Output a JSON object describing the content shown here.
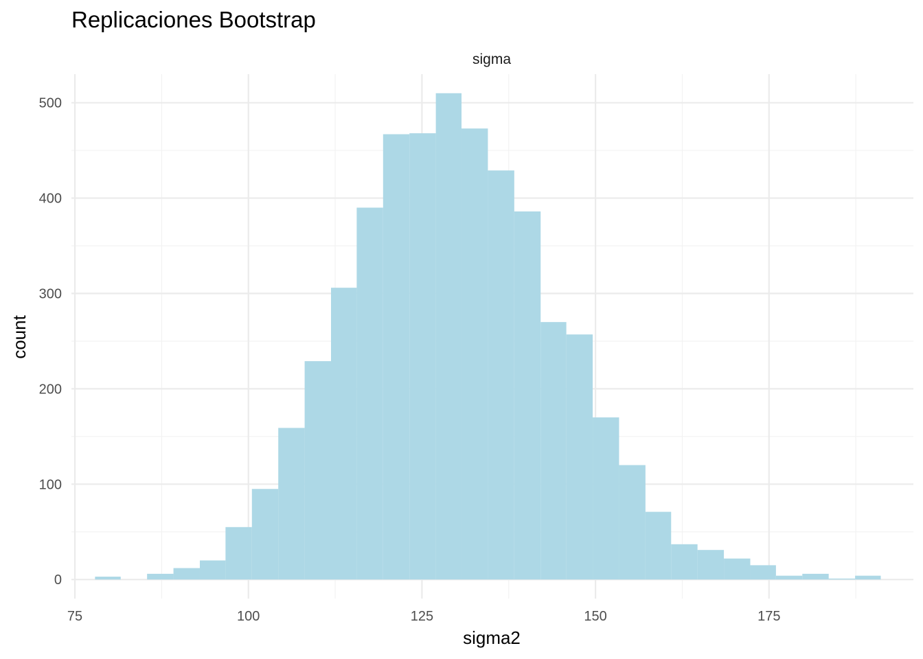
{
  "chart_data": {
    "type": "bar",
    "title": "Replicaciones Bootstrap",
    "facet_label": "sigma",
    "xlabel": "sigma2",
    "ylabel": "count",
    "bar_color": "#ADD8E6",
    "xlim": [
      74.5,
      195.8
    ],
    "ylim": [
      -20,
      530
    ],
    "x_ticks": [
      75,
      100,
      125,
      150,
      175
    ],
    "y_ticks": [
      0,
      100,
      200,
      300,
      400,
      500
    ],
    "grid": true,
    "bins": [
      {
        "x0": 77.9,
        "x1": 81.6,
        "count": 3
      },
      {
        "x0": 81.6,
        "x1": 85.4,
        "count": 0
      },
      {
        "x0": 85.4,
        "x1": 89.2,
        "count": 6
      },
      {
        "x0": 89.2,
        "x1": 93.0,
        "count": 12
      },
      {
        "x0": 93.0,
        "x1": 96.7,
        "count": 20
      },
      {
        "x0": 96.7,
        "x1": 100.5,
        "count": 55
      },
      {
        "x0": 100.5,
        "x1": 104.3,
        "count": 95
      },
      {
        "x0": 104.3,
        "x1": 108.1,
        "count": 159
      },
      {
        "x0": 108.1,
        "x1": 111.9,
        "count": 229
      },
      {
        "x0": 111.9,
        "x1": 115.6,
        "count": 306
      },
      {
        "x0": 115.6,
        "x1": 119.4,
        "count": 390
      },
      {
        "x0": 119.4,
        "x1": 123.2,
        "count": 467
      },
      {
        "x0": 123.2,
        "x1": 127.0,
        "count": 468
      },
      {
        "x0": 127.0,
        "x1": 130.7,
        "count": 510
      },
      {
        "x0": 130.7,
        "x1": 134.5,
        "count": 473
      },
      {
        "x0": 134.5,
        "x1": 138.3,
        "count": 429
      },
      {
        "x0": 138.3,
        "x1": 142.1,
        "count": 386
      },
      {
        "x0": 142.1,
        "x1": 145.8,
        "count": 270
      },
      {
        "x0": 145.8,
        "x1": 149.6,
        "count": 257
      },
      {
        "x0": 149.6,
        "x1": 153.4,
        "count": 170
      },
      {
        "x0": 153.4,
        "x1": 157.2,
        "count": 120
      },
      {
        "x0": 157.2,
        "x1": 160.9,
        "count": 71
      },
      {
        "x0": 160.9,
        "x1": 164.7,
        "count": 37
      },
      {
        "x0": 164.7,
        "x1": 168.5,
        "count": 31
      },
      {
        "x0": 168.5,
        "x1": 172.3,
        "count": 22
      },
      {
        "x0": 172.3,
        "x1": 176.0,
        "count": 15
      },
      {
        "x0": 176.0,
        "x1": 179.8,
        "count": 4
      },
      {
        "x0": 179.8,
        "x1": 183.6,
        "count": 6
      },
      {
        "x0": 183.6,
        "x1": 187.4,
        "count": 1
      },
      {
        "x0": 187.4,
        "x1": 191.1,
        "count": 4
      }
    ]
  }
}
